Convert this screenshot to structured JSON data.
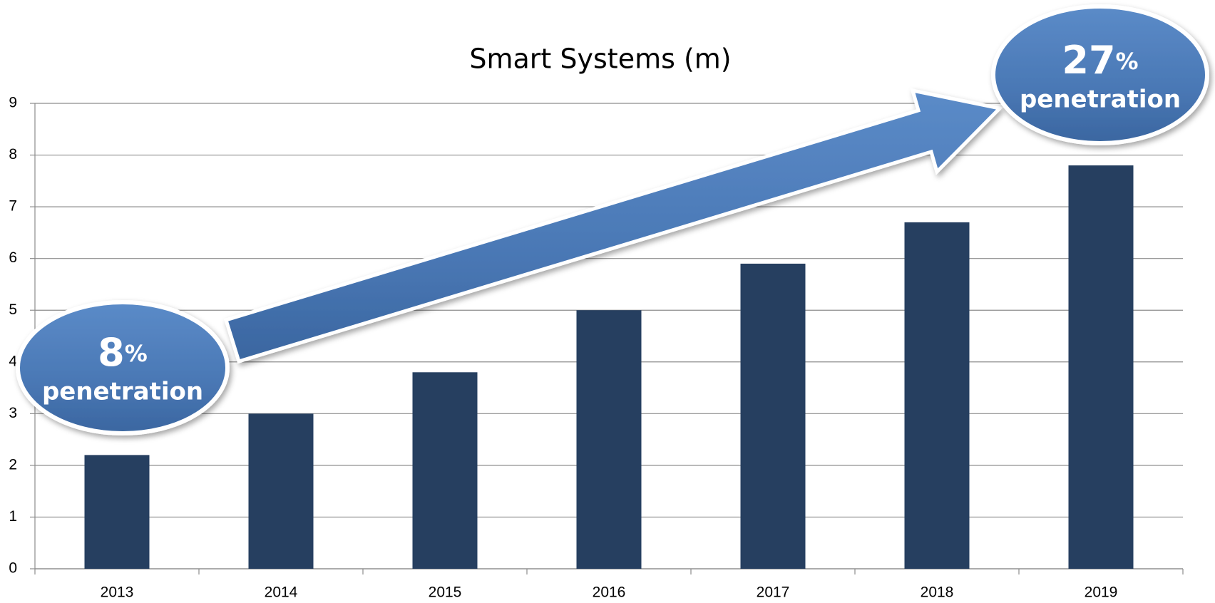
{
  "chart_data": {
    "type": "bar",
    "title": "Smart Systems (m)",
    "categories": [
      "2013",
      "2014",
      "2015",
      "2016",
      "2017",
      "2018",
      "2019"
    ],
    "values": [
      2.2,
      3,
      3.8,
      5,
      5.9,
      6.7,
      7.8
    ],
    "color": "#263f60",
    "ylim": [
      0,
      9
    ],
    "yticks": [
      0,
      1,
      2,
      3,
      4,
      5,
      6,
      7,
      8,
      9
    ],
    "grid": true,
    "annotations": [
      {
        "text": "8",
        "suffix": "%",
        "caption": "penetration"
      },
      {
        "text": "27",
        "suffix": "%",
        "caption": "penetration"
      }
    ]
  }
}
